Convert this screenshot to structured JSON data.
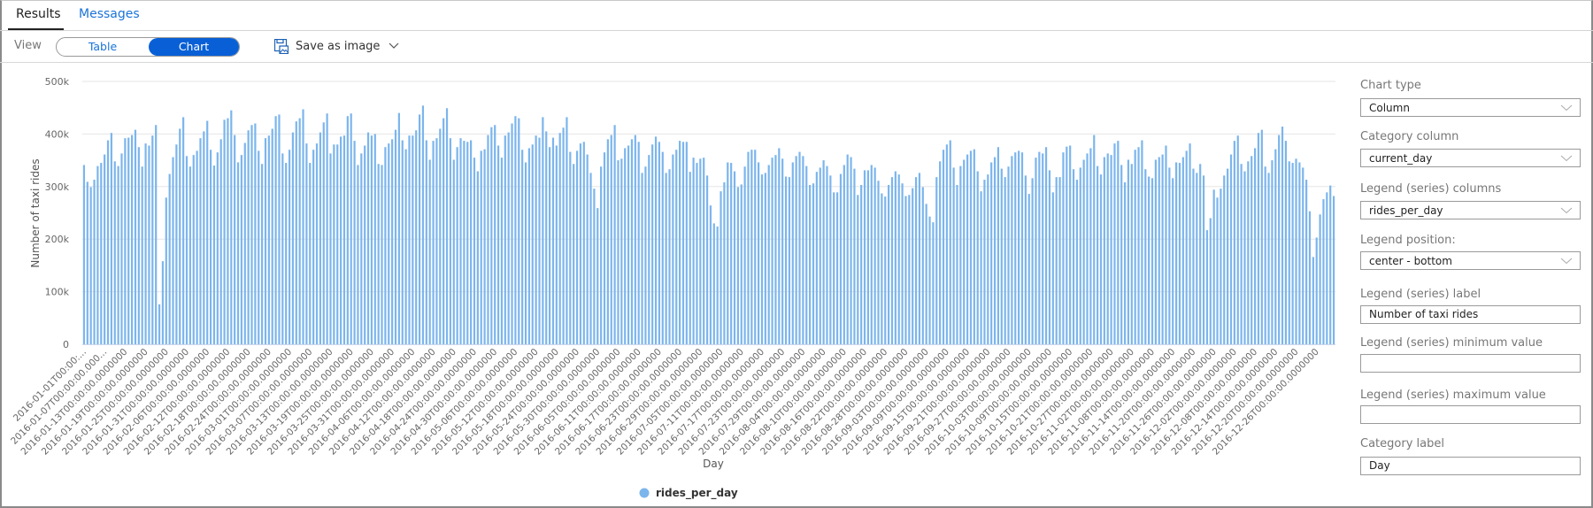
{
  "tabs": [
    {
      "label": "Results",
      "active": true
    },
    {
      "label": "Messages",
      "active": false
    }
  ],
  "toolbar": {
    "view_label": "View",
    "toggle": {
      "table": "Table",
      "chart": "Chart",
      "selected": "Chart"
    },
    "save_label": "Save as image",
    "save_icon": "save-image-icon",
    "chevron_icon": "chevron-down-icon"
  },
  "colors": {
    "accent": "#0960d6",
    "link": "#1a73d9",
    "bar": "#7cb5ec",
    "grid": "#e6e6e6"
  },
  "panel": {
    "chart_type": {
      "label": "Chart type",
      "value": "Column"
    },
    "category_column": {
      "label": "Category column",
      "value": "current_day"
    },
    "legend_columns": {
      "label": "Legend (series) columns",
      "value": "rides_per_day"
    },
    "legend_position": {
      "label": "Legend position:",
      "value": "center - bottom"
    },
    "legend_label": {
      "label": "Legend (series) label",
      "value": "Number of taxi rides"
    },
    "legend_min": {
      "label": "Legend (series) minimum value",
      "value": ""
    },
    "legend_max": {
      "label": "Legend (series) maximum value",
      "value": ""
    },
    "category_label": {
      "label": "Category label",
      "value": "Day"
    }
  },
  "chart_data": {
    "type": "bar",
    "xlabel": "Day",
    "ylabel": "Number of taxi rides",
    "ylim": [
      0,
      500000
    ],
    "y_ticks": [
      "0",
      "100k",
      "200k",
      "300k",
      "400k",
      "500k"
    ],
    "grid": true,
    "legend": {
      "position": "bottom-center",
      "entries": [
        "rides_per_day"
      ]
    },
    "x_tick_every_n_categories": 6,
    "x_tick_labels": [
      "2016-01-01T00:00:...",
      "2016-01-07T00:00:00.000...",
      "2016-01-13T00:00:00.0000000",
      "2016-01-19T00:00:00.0000000",
      "2016-01-25T00:00:00.0000000",
      "2016-01-31T00:00:00.0000000",
      "2016-02-06T00:00:00.0000000",
      "2016-02-12T00:00:00.0000000",
      "2016-02-18T00:00:00.0000000",
      "2016-02-24T00:00:00.0000000",
      "2016-03-01T00:00:00.0000000",
      "2016-03-07T00:00:00.0000000",
      "2016-03-13T00:00:00.0000000",
      "2016-03-19T00:00:00.0000000",
      "2016-03-25T00:00:00.0000000",
      "2016-03-31T00:00:00.0000000",
      "2016-04-06T00:00:00.0000000",
      "2016-04-12T00:00:00.0000000",
      "2016-04-18T00:00:00.0000000",
      "2016-04-24T00:00:00.0000000",
      "2016-04-30T00:00:00.0000000",
      "2016-05-06T00:00:00.0000000",
      "2016-05-12T00:00:00.0000000",
      "2016-05-18T00:00:00.0000000",
      "2016-05-24T00:00:00.0000000",
      "2016-05-30T00:00:00.0000000",
      "2016-06-05T00:00:00.0000000",
      "2016-06-11T00:00:00.0000000",
      "2016-06-17T00:00:00.0000000",
      "2016-06-23T00:00:00.0000000",
      "2016-06-29T00:00:00.0000000",
      "2016-07-05T00:00:00.0000000",
      "2016-07-11T00:00:00.0000000",
      "2016-07-17T00:00:00.0000000",
      "2016-07-23T00:00:00.0000000",
      "2016-07-29T00:00:00.0000000",
      "2016-08-04T00:00:00.0000000",
      "2016-08-10T00:00:00.0000000",
      "2016-08-16T00:00:00.0000000",
      "2016-08-22T00:00:00.0000000",
      "2016-08-28T00:00:00.0000000",
      "2016-09-03T00:00:00.0000000",
      "2016-09-09T00:00:00.0000000",
      "2016-09-15T00:00:00.0000000",
      "2016-09-21T00:00:00.0000000",
      "2016-09-27T00:00:00.0000000",
      "2016-10-03T00:00:00.0000000",
      "2016-10-09T00:00:00.0000000",
      "2016-10-15T00:00:00.0000000",
      "2016-10-21T00:00:00.0000000",
      "2016-10-27T00:00:00.0000000",
      "2016-11-02T00:00:00.0000000",
      "2016-11-08T00:00:00.0000000",
      "2016-11-14T00:00:00.0000000",
      "2016-11-20T00:00:00.0000000",
      "2016-11-26T00:00:00.0000000",
      "2016-12-02T00:00:00.0000000",
      "2016-12-08T00:00:00.0000000",
      "2016-12-14T00:00:00.0000000",
      "2016-12-20T00:00:00.0000000",
      "2016-12-26T00:00:00.0000000"
    ],
    "series": [
      {
        "name": "rides_per_day",
        "values": [
          341000,
          309000,
          299000,
          313000,
          339000,
          345000,
          361000,
          388000,
          402000,
          348000,
          339000,
          363000,
          392000,
          393000,
          398000,
          408000,
          375000,
          338000,
          382000,
          378000,
          397000,
          417000,
          76000,
          158000,
          279000,
          324000,
          356000,
          380000,
          410000,
          432000,
          358000,
          338000,
          360000,
          368000,
          392000,
          405000,
          425000,
          370000,
          340000,
          365000,
          390000,
          427000,
          430000,
          445000,
          398000,
          346000,
          360000,
          383000,
          407000,
          417000,
          420000,
          368000,
          343000,
          392000,
          397000,
          410000,
          434000,
          437000,
          363000,
          345000,
          370000,
          403000,
          424000,
          430000,
          447000,
          382000,
          345000,
          370000,
          382000,
          403000,
          422000,
          439000,
          363000,
          380000,
          380000,
          395000,
          397000,
          434000,
          439000,
          387000,
          341000,
          363000,
          378000,
          403000,
          397000,
          400000,
          343000,
          341000,
          375000,
          382000,
          390000,
          408000,
          440000,
          388000,
          371000,
          397000,
          397000,
          407000,
          437000,
          454000,
          388000,
          351000,
          387000,
          392000,
          410000,
          430000,
          449000,
          392000,
          351000,
          375000,
          392000,
          387000,
          385000,
          388000,
          355000,
          329000,
          368000,
          371000,
          398000,
          413000,
          417000,
          378000,
          355000,
          397000,
          403000,
          420000,
          434000,
          430000,
          370000,
          346000,
          373000,
          380000,
          397000,
          393000,
          432000,
          405000,
          375000,
          393000,
          378000,
          402000,
          412000,
          432000,
          366000,
          343000,
          368000,
          382000,
          385000,
          361000,
          326000,
          296000,
          259000,
          338000,
          365000,
          390000,
          398000,
          417000,
          350000,
          353000,
          373000,
          378000,
          390000,
          398000,
          385000,
          326000,
          338000,
          360000,
          380000,
          395000,
          385000,
          366000,
          326000,
          333000,
          361000,
          370000,
          387000,
          385000,
          385000,
          328000,
          355000,
          345000,
          353000,
          355000,
          321000,
          264000,
          230000,
          224000,
          291000,
          308000,
          346000,
          345000,
          329000,
          299000,
          304000,
          338000,
          366000,
          370000,
          370000,
          346000,
          323000,
          326000,
          341000,
          355000,
          360000,
          373000,
          353000,
          319000,
          318000,
          346000,
          358000,
          366000,
          358000,
          339000,
          303000,
          306000,
          328000,
          336000,
          350000,
          339000,
          321000,
          289000,
          289000,
          324000,
          341000,
          361000,
          356000,
          334000,
          284000,
          303000,
          331000,
          331000,
          341000,
          336000,
          311000,
          287000,
          281000,
          303000,
          318000,
          329000,
          323000,
          306000,
          282000,
          284000,
          297000,
          318000,
          326000,
          299000,
          267000,
          243000,
          232000,
          318000,
          348000,
          370000,
          380000,
          388000,
          336000,
          303000,
          339000,
          351000,
          361000,
          368000,
          371000,
          329000,
          291000,
          313000,
          323000,
          346000,
          356000,
          375000,
          334000,
          318000,
          338000,
          358000,
          365000,
          368000,
          365000,
          321000,
          286000,
          316000,
          355000,
          366000,
          363000,
          375000,
          331000,
          289000,
          318000,
          318000,
          365000,
          376000,
          378000,
          333000,
          313000,
          336000,
          351000,
          363000,
          373000,
          398000,
          339000,
          323000,
          356000,
          363000,
          360000,
          382000,
          387000,
          341000,
          308000,
          351000,
          343000,
          370000,
          375000,
          388000,
          333000,
          319000,
          316000,
          351000,
          356000,
          361000,
          378000,
          336000,
          316000,
          346000,
          345000,
          356000,
          368000,
          382000,
          334000,
          326000,
          343000,
          321000,
          217000,
          240000,
          294000,
          279000,
          296000,
          321000,
          334000,
          361000,
          387000,
          397000,
          343000,
          329000,
          348000,
          358000,
          373000,
          402000,
          408000,
          338000,
          326000,
          350000,
          371000,
          398000,
          414000,
          387000,
          348000,
          345000,
          353000,
          346000,
          336000,
          313000,
          253000,
          166000,
          203000,
          247000,
          276000,
          289000,
          302000,
          282000
        ]
      }
    ]
  }
}
